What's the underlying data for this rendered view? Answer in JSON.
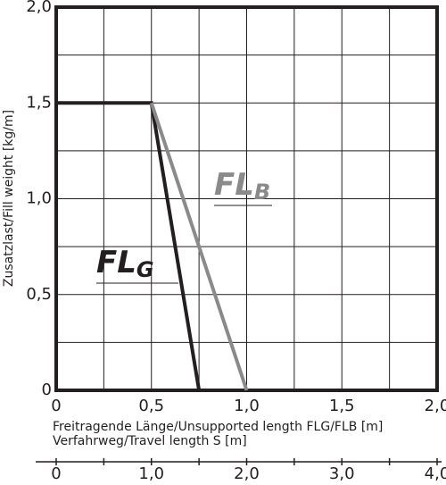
{
  "chart_data": {
    "type": "line",
    "xlabel": "Freitragende Länge/Unsupported length FLG/FLB [m]",
    "ylabel": "Zusatzlast/Fill weight [kg/m]",
    "x2label": "Verfahrweg/Travel length S [m]",
    "xlim": [
      0,
      2
    ],
    "ylim": [
      0,
      2
    ],
    "xticks": [
      0,
      {
        "value": 0.5,
        "label": "0,5"
      },
      {
        "value": 1,
        "label": "1,0"
      },
      {
        "value": 1.5,
        "label": "1,5"
      },
      {
        "value": 2,
        "label": "2,0"
      }
    ],
    "yticks": [
      0,
      {
        "value": 0.5,
        "label": "0,5"
      },
      {
        "value": 1,
        "label": "1,0"
      },
      {
        "value": 1.5,
        "label": "1,5"
      },
      {
        "value": 2,
        "label": "2,0"
      }
    ],
    "minor_xticks": [
      0.25,
      0.75,
      1.25,
      1.75
    ],
    "minor_yticks": [
      0.25,
      0.75,
      1.25,
      1.75
    ],
    "x2lim": [
      0,
      4
    ],
    "x2ticks": [
      0,
      {
        "value": 1,
        "label": "1,0"
      },
      {
        "value": 2,
        "label": "2,0"
      },
      {
        "value": 3,
        "label": "3,0"
      },
      {
        "value": 4,
        "label": "4,0"
      }
    ],
    "minor_x2ticks": [
      0.5,
      1.5,
      2.5,
      3.5
    ],
    "grid": true,
    "series": [
      {
        "name": "FL",
        "name_sub": "G",
        "color": "#231f20",
        "x": [
          0,
          0.5,
          0.75
        ],
        "values": [
          1.5,
          1.5,
          0
        ]
      },
      {
        "name": "FL",
        "name_sub": "B",
        "color": "#8a8a8a",
        "x": [
          0.5,
          1
        ],
        "values": [
          1.5,
          0
        ]
      }
    ]
  }
}
